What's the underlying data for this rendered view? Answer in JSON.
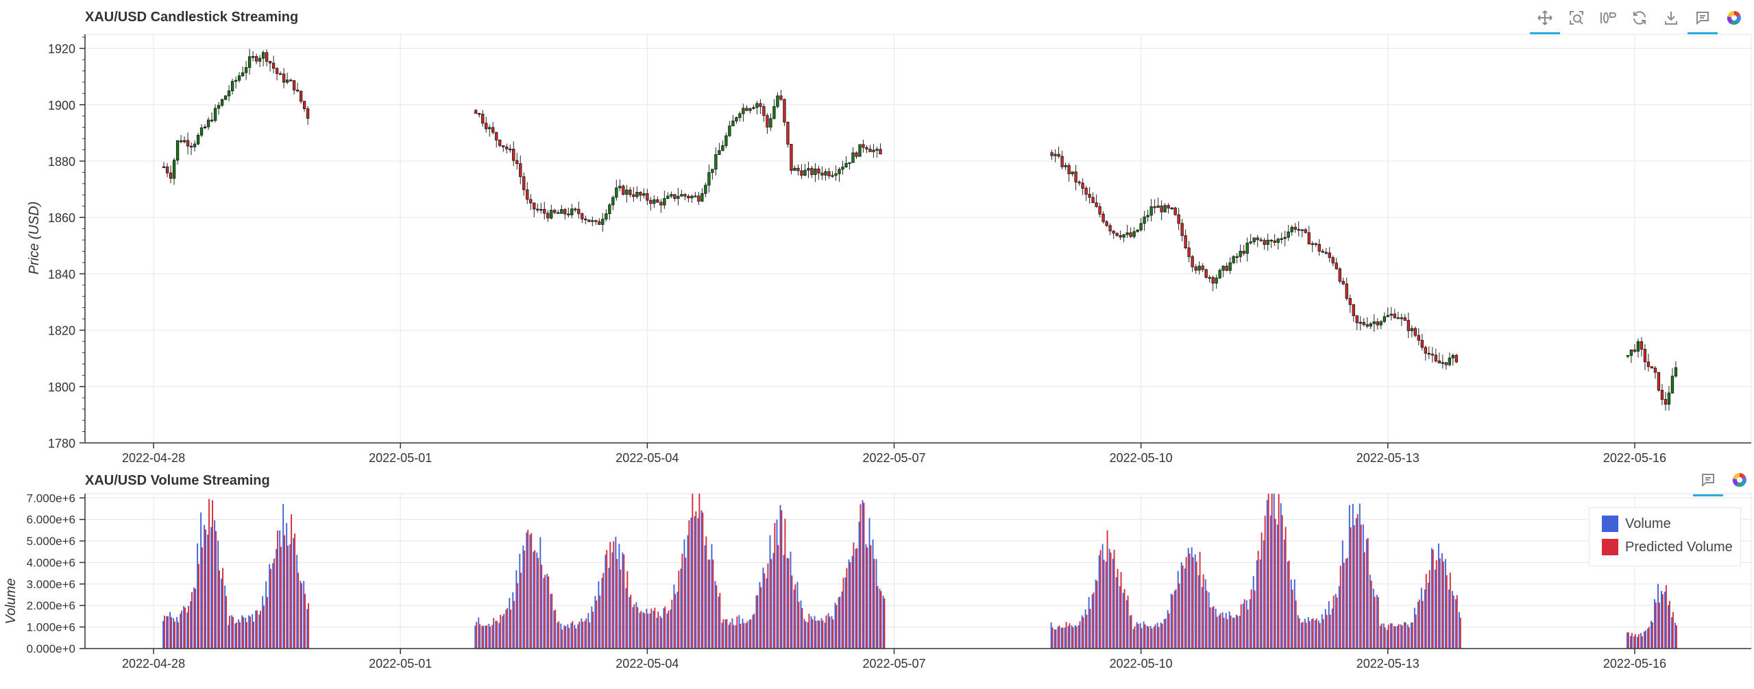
{
  "colors": {
    "up": "#1a7a1a",
    "down": "#d62728",
    "wick": "#222222",
    "grid": "#e6e6e6",
    "axis": "#333333",
    "volume": "#4161d9",
    "predicted": "#d62a3b",
    "toolbar_active": "#26aae1"
  },
  "toolbar_icons": {
    "pan": "pan-icon",
    "box_zoom": "box-zoom-icon",
    "wheel_zoom": "wheel-zoom-icon",
    "reset": "reset-icon",
    "save": "save-icon",
    "hover": "hover-icon",
    "logo": "bokeh-logo-icon"
  },
  "chart_data": [
    {
      "type": "candlestick",
      "title": "XAU/USD Candlestick Streaming",
      "ylabel": "Price (USD)",
      "xlabel": "",
      "ylim": [
        1780,
        1925
      ],
      "yticks": [
        1780,
        1800,
        1820,
        1840,
        1860,
        1880,
        1900,
        1920
      ],
      "xlim": [
        "2022-04-27 04:00",
        "2022-05-17 10:00"
      ],
      "xticks": [
        "2022-04-28",
        "2022-05-01",
        "2022-05-04",
        "2022-05-07",
        "2022-05-10",
        "2022-05-13",
        "2022-05-16"
      ],
      "grid": true,
      "segments": [
        {
          "start": "2022-04-28 03:00",
          "end": "2022-04-29 21:00",
          "close_path": [
            [
              0,
              1878
            ],
            [
              0.05,
              1875
            ],
            [
              0.1,
              1888
            ],
            [
              0.2,
              1886
            ],
            [
              0.3,
              1893
            ],
            [
              0.45,
              1905
            ],
            [
              0.6,
              1916
            ],
            [
              0.7,
              1918
            ],
            [
              0.8,
              1910
            ],
            [
              0.9,
              1907
            ],
            [
              1,
              1896
            ]
          ]
        },
        {
          "start": "2022-05-01 22:00",
          "end": "2022-05-06 20:00",
          "close_path": [
            [
              0,
              1898
            ],
            [
              0.05,
              1888
            ],
            [
              0.08,
              1884
            ],
            [
              0.1,
              1880
            ],
            [
              0.13,
              1864
            ],
            [
              0.18,
              1861
            ],
            [
              0.25,
              1862
            ],
            [
              0.3,
              1857
            ],
            [
              0.35,
              1870
            ],
            [
              0.4,
              1868
            ],
            [
              0.45,
              1865
            ],
            [
              0.5,
              1868
            ],
            [
              0.55,
              1867
            ],
            [
              0.6,
              1883
            ],
            [
              0.65,
              1898
            ],
            [
              0.7,
              1901
            ],
            [
              0.72,
              1892
            ],
            [
              0.75,
              1905
            ],
            [
              0.78,
              1877
            ],
            [
              0.82,
              1876
            ],
            [
              0.88,
              1876
            ],
            [
              0.92,
              1880
            ],
            [
              0.96,
              1886
            ],
            [
              1,
              1882
            ]
          ]
        },
        {
          "start": "2022-05-08 22:00",
          "end": "2022-05-13 20:00",
          "close_path": [
            [
              0,
              1883
            ],
            [
              0.05,
              1875
            ],
            [
              0.1,
              1865
            ],
            [
              0.15,
              1855
            ],
            [
              0.2,
              1853
            ],
            [
              0.25,
              1864
            ],
            [
              0.3,
              1862
            ],
            [
              0.35,
              1843
            ],
            [
              0.4,
              1838
            ],
            [
              0.45,
              1845
            ],
            [
              0.5,
              1852
            ],
            [
              0.55,
              1851
            ],
            [
              0.6,
              1857
            ],
            [
              0.65,
              1850
            ],
            [
              0.7,
              1844
            ],
            [
              0.75,
              1822
            ],
            [
              0.8,
              1823
            ],
            [
              0.85,
              1826
            ],
            [
              0.9,
              1818
            ],
            [
              0.95,
              1808
            ],
            [
              1,
              1810
            ]
          ]
        },
        {
          "start": "2022-05-15 22:00",
          "end": "2022-05-16 12:00",
          "close_path": [
            [
              0,
              1811
            ],
            [
              0.2,
              1815
            ],
            [
              0.4,
              1808
            ],
            [
              0.6,
              1803
            ],
            [
              0.75,
              1792
            ],
            [
              0.9,
              1801
            ],
            [
              1,
              1806
            ]
          ]
        }
      ]
    },
    {
      "type": "bar",
      "title": "XAU/USD Volume Streaming",
      "ylabel": "Volume",
      "xlabel": "",
      "ylim": [
        0,
        7200000
      ],
      "yticks": [
        0,
        1000000,
        2000000,
        3000000,
        4000000,
        5000000,
        6000000,
        7000000
      ],
      "ytick_labels": [
        "0.000e+0",
        "1.000e+6",
        "2.000e+6",
        "3.000e+6",
        "4.000e+6",
        "5.000e+6",
        "6.000e+6",
        "7.000e+6"
      ],
      "xticks": [
        "2022-04-28",
        "2022-05-01",
        "2022-05-04",
        "2022-05-07",
        "2022-05-10",
        "2022-05-13",
        "2022-05-16"
      ],
      "legend_position": "top-right",
      "series": [
        {
          "name": "Volume"
        },
        {
          "name": "Predicted Volume"
        }
      ],
      "sessions": [
        {
          "start": "2022-04-28 03:00",
          "end": "2022-04-28 21:00",
          "peak": 6400000
        },
        {
          "start": "2022-04-28 22:00",
          "end": "2022-04-29 21:00",
          "peak": 5800000
        },
        {
          "start": "2022-05-01 22:00",
          "end": "2022-05-02 21:00",
          "peak": 5300000
        },
        {
          "start": "2022-05-02 22:00",
          "end": "2022-05-03 21:00",
          "peak": 4700000
        },
        {
          "start": "2022-05-03 22:00",
          "end": "2022-05-04 21:00",
          "peak": 6900000
        },
        {
          "start": "2022-05-04 22:00",
          "end": "2022-05-05 21:00",
          "peak": 5600000
        },
        {
          "start": "2022-05-05 22:00",
          "end": "2022-05-06 21:00",
          "peak": 6000000
        },
        {
          "start": "2022-05-08 22:00",
          "end": "2022-05-09 21:00",
          "peak": 4600000
        },
        {
          "start": "2022-05-09 22:00",
          "end": "2022-05-10 21:00",
          "peak": 4600000
        },
        {
          "start": "2022-05-10 22:00",
          "end": "2022-05-11 21:00",
          "peak": 7000000
        },
        {
          "start": "2022-05-11 22:00",
          "end": "2022-05-12 21:00",
          "peak": 6000000
        },
        {
          "start": "2022-05-12 22:00",
          "end": "2022-05-13 21:00",
          "peak": 4400000
        },
        {
          "start": "2022-05-15 22:00",
          "end": "2022-05-16 12:00",
          "peak": 2800000
        }
      ]
    }
  ]
}
